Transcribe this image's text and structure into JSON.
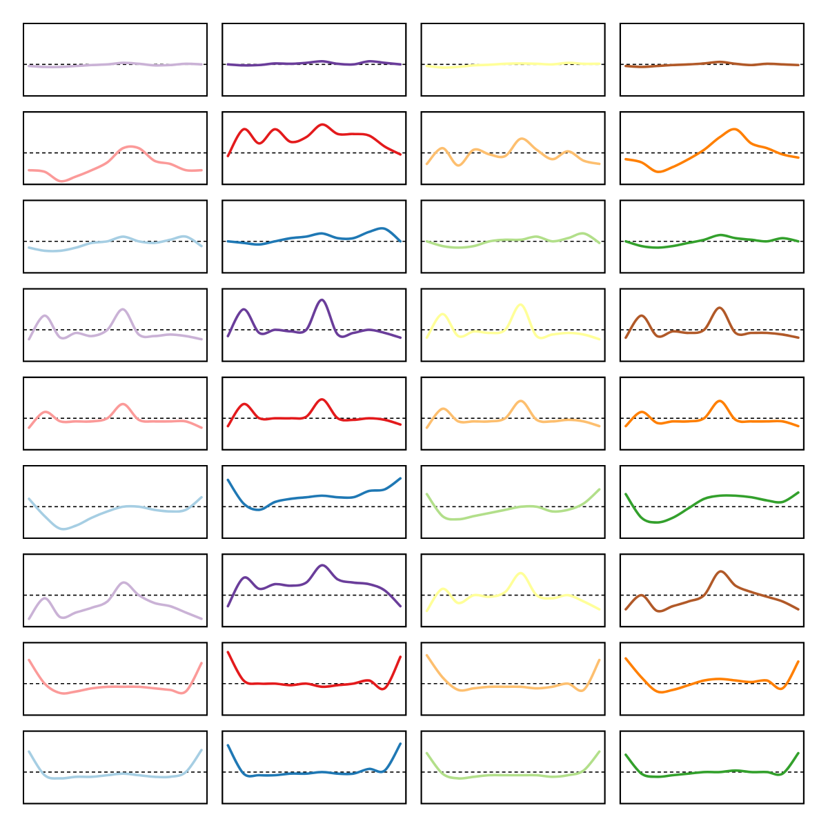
{
  "chart_data": [
    {
      "type": "line",
      "color": "#cab2d6",
      "ylim": [
        -1,
        1.3
      ],
      "hline": 0,
      "values": [
        -0.05,
        -0.08,
        -0.08,
        -0.05,
        -0.02,
        0,
        0.05,
        0.02,
        -0.03,
        -0.02,
        0.02,
        0
      ]
    },
    {
      "type": "line",
      "color": "#6a3d9a",
      "ylim": [
        -1,
        1.3
      ],
      "hline": 0,
      "values": [
        0,
        -0.03,
        -0.02,
        0.03,
        0.02,
        0.05,
        0.1,
        0.02,
        0,
        0.1,
        0.05,
        0
      ]
    },
    {
      "type": "line",
      "color": "#ffff99",
      "ylim": [
        -1,
        1.3
      ],
      "hline": 0,
      "values": [
        -0.05,
        -0.1,
        -0.08,
        -0.03,
        -0.01,
        0.02,
        0.03,
        0.02,
        0,
        0.05,
        0.02,
        0.02
      ]
    },
    {
      "type": "line",
      "color": "#b15928",
      "ylim": [
        -1,
        1.3
      ],
      "hline": 0,
      "values": [
        -0.05,
        -0.08,
        -0.05,
        -0.02,
        0,
        0.03,
        0.08,
        0.02,
        -0.02,
        0.02,
        0,
        -0.02
      ]
    },
    {
      "type": "line",
      "color": "#fb9a99",
      "ylim": [
        -1,
        1.3
      ],
      "hline": 0,
      "values": [
        -0.55,
        -0.6,
        -0.9,
        -0.75,
        -0.55,
        -0.3,
        0.15,
        0.15,
        -0.25,
        -0.35,
        -0.55,
        -0.55
      ]
    },
    {
      "type": "line",
      "color": "#e31a1c",
      "ylim": [
        -1,
        1.3
      ],
      "hline": 0,
      "values": [
        -0.1,
        0.75,
        0.3,
        0.75,
        0.35,
        0.5,
        0.9,
        0.6,
        0.6,
        0.55,
        0.2,
        -0.05
      ]
    },
    {
      "type": "line",
      "color": "#fdbf6f",
      "ylim": [
        -1,
        1.3
      ],
      "hline": 0,
      "values": [
        -0.35,
        0.15,
        -0.4,
        0.1,
        -0.05,
        -0.1,
        0.45,
        0.1,
        -0.2,
        0.05,
        -0.25,
        -0.35
      ]
    },
    {
      "type": "line",
      "color": "#ff7f00",
      "ylim": [
        -1,
        1.3
      ],
      "hline": 0,
      "values": [
        -0.2,
        -0.3,
        -0.6,
        -0.45,
        -0.2,
        0.1,
        0.5,
        0.75,
        0.3,
        0.15,
        -0.05,
        -0.15
      ]
    },
    {
      "type": "line",
      "color": "#a6cee3",
      "ylim": [
        -1,
        1.3
      ],
      "hline": 0,
      "values": [
        -0.2,
        -0.3,
        -0.3,
        -0.2,
        -0.05,
        0,
        0.15,
        0,
        -0.05,
        0.05,
        0.15,
        -0.15
      ]
    },
    {
      "type": "line",
      "color": "#1f78b4",
      "ylim": [
        -1,
        1.3
      ],
      "hline": 0,
      "values": [
        0,
        -0.05,
        -0.1,
        0,
        0.1,
        0.15,
        0.25,
        0.1,
        0.1,
        0.3,
        0.4,
        0
      ]
    },
    {
      "type": "line",
      "color": "#b2df8a",
      "ylim": [
        -1,
        1.3
      ],
      "hline": 0,
      "values": [
        0,
        -0.15,
        -0.2,
        -0.15,
        0,
        0.05,
        0.05,
        0.15,
        0,
        0.1,
        0.25,
        -0.05
      ]
    },
    {
      "type": "line",
      "color": "#33a02c",
      "ylim": [
        -1,
        1.3
      ],
      "hline": 0,
      "values": [
        0,
        -0.15,
        -0.2,
        -0.15,
        -0.05,
        0.05,
        0.2,
        0.1,
        0.05,
        0,
        0.1,
        0
      ]
    },
    {
      "type": "line",
      "color": "#cab2d6",
      "ylim": [
        -1,
        1.3
      ],
      "hline": 0,
      "values": [
        -0.3,
        0.45,
        -0.25,
        -0.1,
        -0.2,
        0,
        0.65,
        -0.15,
        -0.2,
        -0.15,
        -0.2,
        -0.3
      ]
    },
    {
      "type": "line",
      "color": "#6a3d9a",
      "ylim": [
        -1,
        1.3
      ],
      "hline": 0,
      "values": [
        -0.2,
        0.65,
        -0.1,
        0,
        -0.05,
        0,
        0.95,
        -0.15,
        -0.1,
        0,
        -0.1,
        -0.25
      ]
    },
    {
      "type": "line",
      "color": "#ffff99",
      "ylim": [
        -1,
        1.3
      ],
      "hline": 0,
      "values": [
        -0.25,
        0.5,
        -0.2,
        -0.05,
        -0.1,
        0,
        0.8,
        -0.2,
        -0.15,
        -0.1,
        -0.15,
        -0.3
      ]
    },
    {
      "type": "line",
      "color": "#b15928",
      "ylim": [
        -1,
        1.3
      ],
      "hline": 0,
      "values": [
        -0.25,
        0.45,
        -0.2,
        -0.05,
        -0.1,
        0,
        0.7,
        -0.1,
        -0.1,
        -0.1,
        -0.15,
        -0.25
      ]
    },
    {
      "type": "line",
      "color": "#fb9a99",
      "ylim": [
        -1,
        1.3
      ],
      "hline": 0,
      "values": [
        -0.3,
        0.2,
        -0.1,
        -0.1,
        -0.1,
        0,
        0.45,
        -0.05,
        -0.1,
        -0.1,
        -0.1,
        -0.3
      ]
    },
    {
      "type": "line",
      "color": "#e31a1c",
      "ylim": [
        -1,
        1.3
      ],
      "hline": 0,
      "values": [
        -0.25,
        0.45,
        0,
        0,
        0,
        0.05,
        0.6,
        0,
        -0.05,
        0,
        -0.05,
        -0.2
      ]
    },
    {
      "type": "line",
      "color": "#fdbf6f",
      "ylim": [
        -1,
        1.3
      ],
      "hline": 0,
      "values": [
        -0.3,
        0.3,
        -0.1,
        -0.1,
        -0.1,
        0,
        0.55,
        -0.05,
        -0.1,
        -0.05,
        -0.1,
        -0.25
      ]
    },
    {
      "type": "line",
      "color": "#ff7f00",
      "ylim": [
        -1,
        1.3
      ],
      "hline": 0,
      "values": [
        -0.25,
        0.2,
        -0.15,
        -0.1,
        -0.1,
        0,
        0.55,
        -0.05,
        -0.1,
        -0.1,
        -0.1,
        -0.25
      ]
    },
    {
      "type": "line",
      "color": "#a6cee3",
      "ylim": [
        -1,
        1.3
      ],
      "hline": 0,
      "values": [
        0.25,
        -0.3,
        -0.7,
        -0.6,
        -0.35,
        -0.15,
        0,
        0,
        -0.1,
        -0.15,
        -0.1,
        0.3
      ]
    },
    {
      "type": "line",
      "color": "#1f78b4",
      "ylim": [
        -1,
        1.3
      ],
      "hline": 0,
      "values": [
        0.85,
        0.1,
        -0.1,
        0.15,
        0.25,
        0.3,
        0.35,
        0.3,
        0.3,
        0.5,
        0.55,
        0.9
      ]
    },
    {
      "type": "line",
      "color": "#b2df8a",
      "ylim": [
        -1,
        1.3
      ],
      "hline": 0,
      "values": [
        0.4,
        -0.3,
        -0.4,
        -0.3,
        -0.2,
        -0.1,
        0,
        0,
        -0.15,
        -0.1,
        0.1,
        0.55
      ]
    },
    {
      "type": "line",
      "color": "#33a02c",
      "ylim": [
        -1,
        1.3
      ],
      "hline": 0,
      "values": [
        0.4,
        -0.35,
        -0.5,
        -0.35,
        -0.05,
        0.25,
        0.35,
        0.35,
        0.3,
        0.2,
        0.15,
        0.45
      ]
    },
    {
      "type": "line",
      "color": "#cab2d6",
      "ylim": [
        -1,
        1.3
      ],
      "hline": 0,
      "values": [
        -0.75,
        -0.1,
        -0.7,
        -0.55,
        -0.4,
        -0.2,
        0.4,
        0,
        -0.25,
        -0.35,
        -0.55,
        -0.75
      ]
    },
    {
      "type": "line",
      "color": "#6a3d9a",
      "ylim": [
        -1,
        1.3
      ],
      "hline": 0,
      "values": [
        -0.35,
        0.55,
        0.2,
        0.35,
        0.3,
        0.4,
        0.95,
        0.5,
        0.4,
        0.35,
        0.15,
        -0.35
      ]
    },
    {
      "type": "line",
      "color": "#ffff99",
      "ylim": [
        -1,
        1.3
      ],
      "hline": 0,
      "values": [
        -0.5,
        0.2,
        -0.25,
        0,
        -0.05,
        0.1,
        0.7,
        0,
        -0.1,
        0,
        -0.2,
        -0.45
      ]
    },
    {
      "type": "line",
      "color": "#b15928",
      "ylim": [
        -1,
        1.3
      ],
      "hline": 0,
      "values": [
        -0.45,
        0,
        -0.5,
        -0.35,
        -0.2,
        0,
        0.75,
        0.3,
        0.1,
        -0.05,
        -0.2,
        -0.45
      ]
    },
    {
      "type": "line",
      "color": "#fb9a99",
      "ylim": [
        -1,
        1.3
      ],
      "hline": 0,
      "values": [
        0.75,
        0,
        -0.3,
        -0.25,
        -0.15,
        -0.1,
        -0.1,
        -0.1,
        -0.15,
        -0.2,
        -0.25,
        0.65
      ]
    },
    {
      "type": "line",
      "color": "#e31a1c",
      "ylim": [
        -1,
        1.3
      ],
      "hline": 0,
      "values": [
        1.0,
        0.1,
        0,
        0,
        -0.05,
        0,
        -0.1,
        -0.05,
        0,
        0.1,
        -0.15,
        0.85
      ]
    },
    {
      "type": "line",
      "color": "#fdbf6f",
      "ylim": [
        -1,
        1.3
      ],
      "hline": 0,
      "values": [
        0.9,
        0.2,
        -0.2,
        -0.15,
        -0.1,
        -0.1,
        -0.1,
        -0.15,
        -0.1,
        0,
        -0.2,
        0.75
      ]
    },
    {
      "type": "line",
      "color": "#ff7f00",
      "ylim": [
        -1,
        1.3
      ],
      "hline": 0,
      "values": [
        0.8,
        0.2,
        -0.25,
        -0.2,
        -0.05,
        0.1,
        0.15,
        0.1,
        0.05,
        0.1,
        -0.15,
        0.7
      ]
    },
    {
      "type": "line",
      "color": "#a6cee3",
      "ylim": [
        -1,
        1.3
      ],
      "hline": 0,
      "values": [
        0.65,
        -0.1,
        -0.2,
        -0.15,
        -0.15,
        -0.1,
        -0.05,
        -0.1,
        -0.15,
        -0.15,
        0,
        0.7
      ]
    },
    {
      "type": "line",
      "color": "#1f78b4",
      "ylim": [
        -1,
        1.3
      ],
      "hline": 0,
      "values": [
        0.85,
        -0.05,
        -0.1,
        -0.1,
        -0.05,
        -0.05,
        0,
        -0.05,
        -0.05,
        0.1,
        0.05,
        0.9
      ]
    },
    {
      "type": "line",
      "color": "#b2df8a",
      "ylim": [
        -1,
        1.3
      ],
      "hline": 0,
      "values": [
        0.6,
        -0.05,
        -0.2,
        -0.15,
        -0.1,
        -0.1,
        -0.1,
        -0.1,
        -0.15,
        -0.1,
        0.05,
        0.65
      ]
    },
    {
      "type": "line",
      "color": "#33a02c",
      "ylim": [
        -1,
        1.3
      ],
      "hline": 0,
      "values": [
        0.55,
        -0.05,
        -0.15,
        -0.1,
        -0.05,
        0,
        0,
        0.05,
        0,
        0,
        -0.05,
        0.6
      ]
    }
  ]
}
